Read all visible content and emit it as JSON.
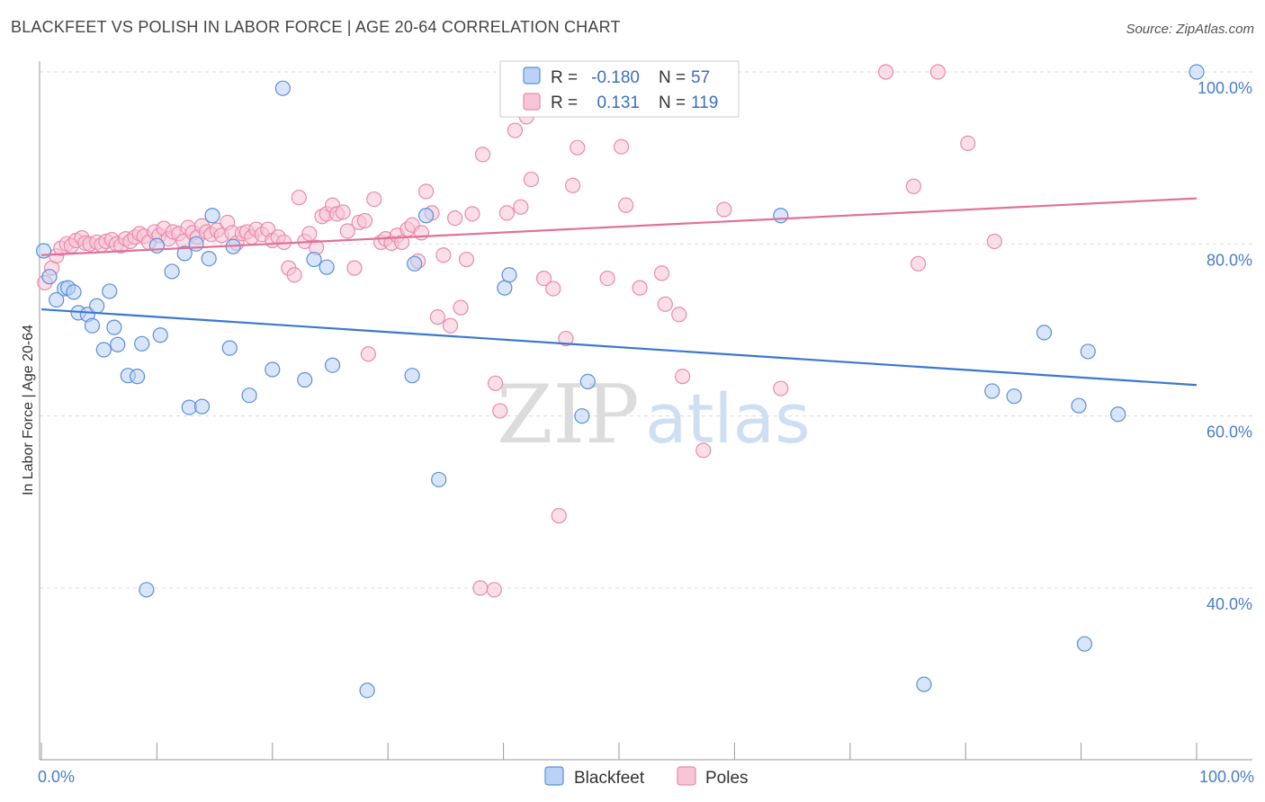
{
  "header": {
    "title": "BLACKFEET VS POLISH IN LABOR FORCE | AGE 20-64 CORRELATION CHART",
    "source": "Source: ZipAtlas.com"
  },
  "watermark": {
    "part1": "ZIP",
    "part2": "atlas"
  },
  "legend": {
    "rows": [
      {
        "r_label": "R =",
        "r_value": "-0.180",
        "n_label": "N =",
        "n_value": "57"
      },
      {
        "r_label": "R =",
        "r_value": "0.131",
        "n_label": "N =",
        "n_value": "119"
      }
    ]
  },
  "bottom_legend": [
    {
      "label": "Blackfeet"
    },
    {
      "label": "Poles"
    }
  ],
  "colors": {
    "blackfeet_fill": "#b9d2f5",
    "blackfeet_stroke": "#5b8fd8",
    "blackfeet_line": "#3a78d0",
    "poles_fill": "#f8c5d6",
    "poles_stroke": "#e98aab",
    "poles_line": "#e0709a",
    "grid": "#dcdcdc",
    "tick_label": "#4a7cc9"
  },
  "chart_data": {
    "type": "scatter",
    "title": "BLACKFEET VS POLISH IN LABOR FORCE | AGE 20-64 CORRELATION CHART",
    "xlabel": "",
    "ylabel": "In Labor Force | Age 20-64",
    "xlim": [
      0,
      100
    ],
    "ylim": [
      20,
      102
    ],
    "x_tick_labels": [
      "0.0%",
      "100.0%"
    ],
    "y_ticks": [
      40,
      60,
      80,
      100
    ],
    "y_tick_labels": [
      "40.0%",
      "60.0%",
      "80.0%",
      "100.0%"
    ],
    "grid": true,
    "legend_position": "top-center",
    "series": [
      {
        "name": "Blackfeet",
        "R": -0.18,
        "N": 57,
        "trend": {
          "x": [
            0,
            100
          ],
          "y": [
            72.4,
            63.6
          ]
        },
        "points": [
          [
            0.2,
            79.2
          ],
          [
            0.7,
            76.2
          ],
          [
            1.3,
            73.5
          ],
          [
            2,
            74.8
          ],
          [
            2.3,
            74.9
          ],
          [
            2.8,
            74.4
          ],
          [
            3.2,
            72
          ],
          [
            4,
            71.8
          ],
          [
            4.4,
            70.5
          ],
          [
            4.8,
            72.8
          ],
          [
            5.4,
            67.7
          ],
          [
            5.9,
            74.5
          ],
          [
            6.3,
            70.3
          ],
          [
            6.6,
            68.3
          ],
          [
            7.5,
            64.7
          ],
          [
            8.3,
            64.6
          ],
          [
            8.7,
            68.4
          ],
          [
            9.1,
            39.8
          ],
          [
            10,
            79.8
          ],
          [
            10.3,
            69.4
          ],
          [
            11.3,
            76.8
          ],
          [
            12.4,
            78.9
          ],
          [
            12.8,
            61
          ],
          [
            13.4,
            80
          ],
          [
            13.9,
            61.1
          ],
          [
            14.5,
            78.3
          ],
          [
            14.8,
            83.3
          ],
          [
            16.3,
            67.9
          ],
          [
            16.6,
            79.7
          ],
          [
            18,
            62.4
          ],
          [
            20,
            65.4
          ],
          [
            20.9,
            98.1
          ],
          [
            22.8,
            64.2
          ],
          [
            23.6,
            78.2
          ],
          [
            24.7,
            77.3
          ],
          [
            25.2,
            65.9
          ],
          [
            28.2,
            28.1
          ],
          [
            32.1,
            64.7
          ],
          [
            32.3,
            77.7
          ],
          [
            33.3,
            83.3
          ],
          [
            34.4,
            52.6
          ],
          [
            40.1,
            74.9
          ],
          [
            40.5,
            76.4
          ],
          [
            46.8,
            60
          ],
          [
            47.3,
            64
          ],
          [
            64,
            83.3
          ],
          [
            76.4,
            28.8
          ],
          [
            82.3,
            62.9
          ],
          [
            84.2,
            62.3
          ],
          [
            86.8,
            69.7
          ],
          [
            89.8,
            61.2
          ],
          [
            90.3,
            33.5
          ],
          [
            90.6,
            67.5
          ],
          [
            93.2,
            60.2
          ],
          [
            100,
            100
          ]
        ]
      },
      {
        "name": "Poles",
        "R": 0.131,
        "N": 119,
        "trend": {
          "x": [
            0,
            100
          ],
          "y": [
            78.7,
            85.3
          ]
        },
        "points": [
          [
            0.3,
            75.5
          ],
          [
            0.9,
            77.2
          ],
          [
            1.3,
            78.6
          ],
          [
            1.7,
            79.5
          ],
          [
            2.2,
            80
          ],
          [
            2.6,
            79.8
          ],
          [
            3,
            80.4
          ],
          [
            3.5,
            80.7
          ],
          [
            3.8,
            80.1
          ],
          [
            4.2,
            80
          ],
          [
            4.8,
            80.2
          ],
          [
            5.2,
            79.9
          ],
          [
            5.6,
            80.3
          ],
          [
            6.1,
            80.5
          ],
          [
            6.5,
            80
          ],
          [
            6.9,
            79.8
          ],
          [
            7.3,
            80.6
          ],
          [
            7.7,
            80.3
          ],
          [
            8.1,
            80.8
          ],
          [
            8.5,
            81.2
          ],
          [
            8.9,
            80.9
          ],
          [
            9.3,
            80.2
          ],
          [
            9.8,
            81.4
          ],
          [
            10.2,
            81
          ],
          [
            10.6,
            81.8
          ],
          [
            11,
            80.6
          ],
          [
            11.4,
            81.4
          ],
          [
            11.9,
            81.2
          ],
          [
            12.3,
            80.3
          ],
          [
            12.7,
            81.9
          ],
          [
            13.1,
            81.3
          ],
          [
            13.5,
            80.8
          ],
          [
            13.9,
            82.1
          ],
          [
            14.3,
            81.4
          ],
          [
            14.7,
            81.1
          ],
          [
            15.2,
            81.6
          ],
          [
            15.6,
            81
          ],
          [
            16.1,
            82.5
          ],
          [
            16.5,
            81.3
          ],
          [
            16.9,
            80.1
          ],
          [
            17.4,
            81.2
          ],
          [
            17.8,
            81.4
          ],
          [
            18.2,
            80.8
          ],
          [
            18.6,
            81.7
          ],
          [
            19.1,
            81.1
          ],
          [
            19.6,
            81.7
          ],
          [
            20,
            80.4
          ],
          [
            20.5,
            80.8
          ],
          [
            21,
            80.2
          ],
          [
            21.4,
            77.2
          ],
          [
            21.9,
            76.4
          ],
          [
            22.3,
            85.4
          ],
          [
            22.8,
            80.3
          ],
          [
            23.2,
            81.2
          ],
          [
            23.8,
            79.6
          ],
          [
            24.3,
            83.2
          ],
          [
            24.7,
            83.5
          ],
          [
            25.2,
            84.5
          ],
          [
            25.6,
            83.5
          ],
          [
            26.1,
            83.7
          ],
          [
            26.5,
            81.5
          ],
          [
            27.1,
            77.2
          ],
          [
            27.5,
            82.5
          ],
          [
            28,
            82.7
          ],
          [
            28.3,
            67.2
          ],
          [
            28.8,
            85.2
          ],
          [
            29.4,
            80.2
          ],
          [
            29.8,
            80.6
          ],
          [
            30.3,
            80.1
          ],
          [
            30.8,
            81
          ],
          [
            31.2,
            80.2
          ],
          [
            31.7,
            81.7
          ],
          [
            32.1,
            82.2
          ],
          [
            32.6,
            78
          ],
          [
            32.9,
            81.3
          ],
          [
            33.3,
            86.1
          ],
          [
            33.8,
            83.6
          ],
          [
            34.3,
            71.5
          ],
          [
            34.8,
            78.7
          ],
          [
            35.4,
            70.5
          ],
          [
            35.8,
            83
          ],
          [
            36.3,
            72.6
          ],
          [
            36.8,
            78.2
          ],
          [
            37.3,
            83.5
          ],
          [
            38.2,
            90.4
          ],
          [
            39.3,
            63.8
          ],
          [
            39.7,
            60.6
          ],
          [
            40.3,
            83.6
          ],
          [
            41,
            93.2
          ],
          [
            41.5,
            84.3
          ],
          [
            42,
            94.8
          ],
          [
            42.4,
            87.5
          ],
          [
            42.9,
            100
          ],
          [
            43.5,
            76
          ],
          [
            44.3,
            74.8
          ],
          [
            44.8,
            48.4
          ],
          [
            45.4,
            69
          ],
          [
            46,
            86.8
          ],
          [
            46.4,
            91.2
          ],
          [
            49,
            76
          ],
          [
            50.2,
            91.3
          ],
          [
            50.6,
            84.5
          ],
          [
            51.2,
            100
          ],
          [
            51.8,
            74.9
          ],
          [
            52,
            96.6
          ],
          [
            53.7,
            76.6
          ],
          [
            54,
            73
          ],
          [
            55.2,
            71.8
          ],
          [
            55.5,
            64.6
          ],
          [
            57.3,
            56
          ],
          [
            59.1,
            84
          ],
          [
            64,
            63.2
          ],
          [
            73.1,
            100
          ],
          [
            75.5,
            86.7
          ],
          [
            75.9,
            77.7
          ],
          [
            77.6,
            100
          ],
          [
            80.2,
            91.7
          ],
          [
            82.5,
            80.3
          ],
          [
            38,
            40
          ],
          [
            39.2,
            39.8
          ]
        ]
      }
    ]
  }
}
